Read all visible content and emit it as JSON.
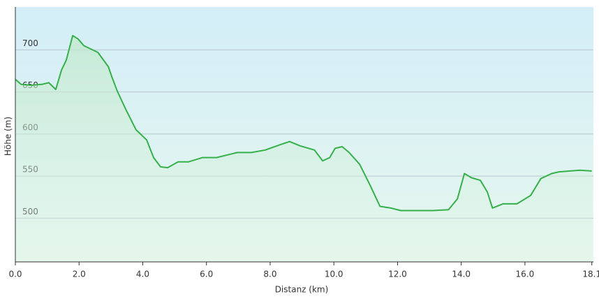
{
  "chart_data": {
    "type": "line",
    "xlabel": "Distanz  (km)",
    "ylabel": "Höhe (m)",
    "x": [
      0,
      0.18,
      0.5,
      0.83,
      1.05,
      1.27,
      1.45,
      1.6,
      1.8,
      1.97,
      2.15,
      2.59,
      2.92,
      3.03,
      3.2,
      3.46,
      3.79,
      4.12,
      4.34,
      4.56,
      4.78,
      5.11,
      5.44,
      5.88,
      6.32,
      6.75,
      6.97,
      7.41,
      7.85,
      8.29,
      8.61,
      8.94,
      9.39,
      9.65,
      9.87,
      10.04,
      10.26,
      10.48,
      10.81,
      11.14,
      11.45,
      11.79,
      12.1,
      12.68,
      13.1,
      13.6,
      13.88,
      14.1,
      14.32,
      14.6,
      14.82,
      14.98,
      15.31,
      15.75,
      16.18,
      16.5,
      16.84,
      17.06,
      17.4,
      17.72,
      18.1
    ],
    "values": [
      665,
      659,
      658,
      659,
      661,
      653,
      676,
      688,
      717,
      713,
      705,
      697,
      680,
      668,
      651,
      630,
      605,
      593,
      572,
      561,
      560,
      567,
      567,
      572,
      572,
      576,
      578,
      578,
      581,
      587,
      591,
      586,
      581,
      568,
      572,
      583,
      585,
      578,
      564,
      539,
      514,
      512,
      509,
      509,
      509,
      510,
      523,
      553,
      548,
      545,
      531,
      512,
      517,
      517,
      527,
      547,
      553,
      555,
      556,
      557,
      556
    ],
    "color": "#36b04a",
    "xlim": [
      0,
      18.15
    ],
    "ylim": [
      448,
      751
    ],
    "xticks": [
      {
        "value": 0,
        "label": "0.0"
      },
      {
        "value": 2,
        "label": "2.0"
      },
      {
        "value": 4,
        "label": "4.0"
      },
      {
        "value": 6,
        "label": "6.0"
      },
      {
        "value": 8,
        "label": "8.0"
      },
      {
        "value": 10,
        "label": "10.0"
      },
      {
        "value": 12,
        "label": "12.0"
      },
      {
        "value": 14,
        "label": "14.0"
      },
      {
        "value": 16,
        "label": "16.0"
      },
      18.1
    ],
    "yticks": [
      500,
      550,
      600,
      650,
      700
    ],
    "grid": true
  }
}
